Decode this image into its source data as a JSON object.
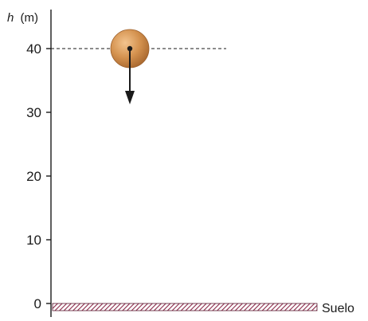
{
  "axis": {
    "variable": "h",
    "unit": "(m)",
    "ticks": [
      "0",
      "10",
      "20",
      "30",
      "40"
    ]
  },
  "ground": {
    "label": "Suelo"
  },
  "ball": {
    "height": 40,
    "color": "#c98a4a"
  },
  "colors": {
    "line": "#1a1a1a",
    "ground_hatch": "#8a2a4a"
  }
}
